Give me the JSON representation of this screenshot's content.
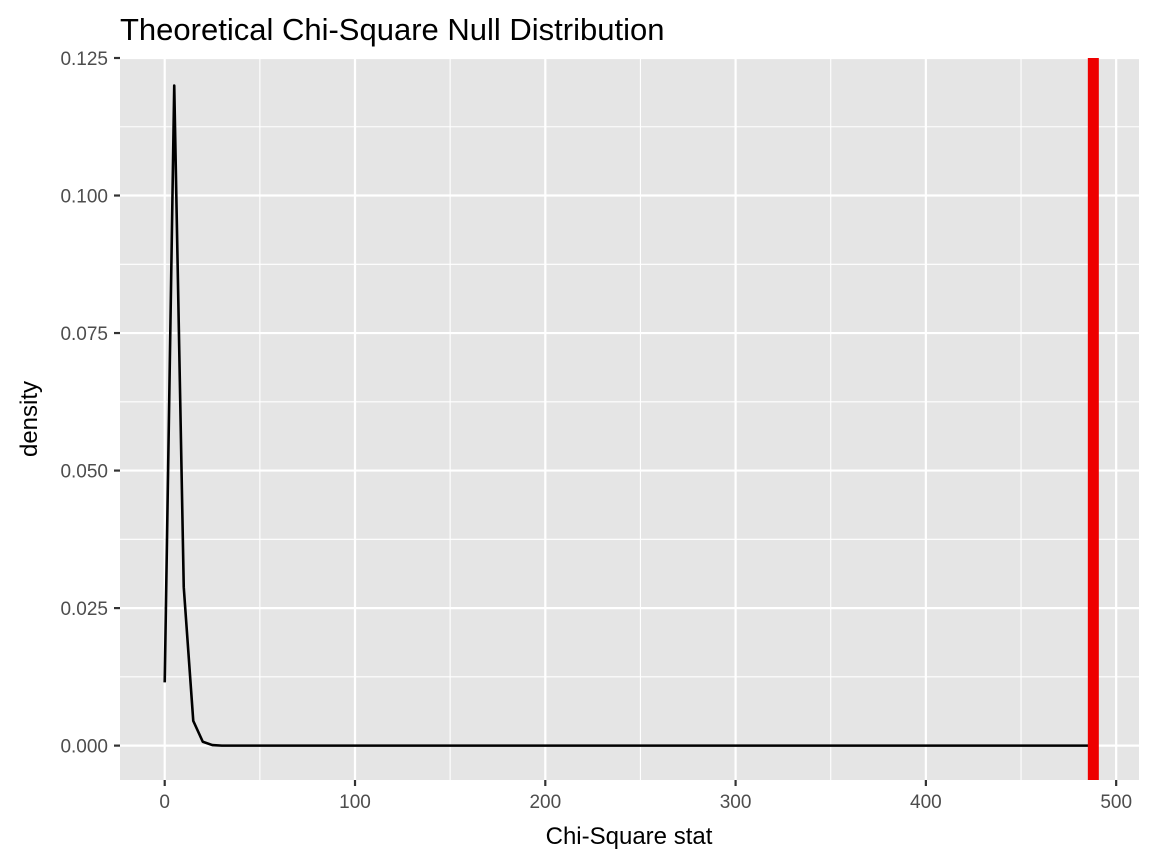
{
  "chart_data": {
    "type": "line",
    "title": "Theoretical Chi-Square Null Distribution",
    "xlabel": "Chi-Square stat",
    "ylabel": "density",
    "xlim": [
      -23.5,
      512
    ],
    "ylim": [
      -0.00625,
      0.125
    ],
    "x_ticks": [
      0,
      100,
      200,
      300,
      400,
      500
    ],
    "x_tick_labels": [
      "0",
      "100",
      "200",
      "300",
      "400",
      "500"
    ],
    "y_ticks": [
      0,
      0.025,
      0.05,
      0.075,
      0.1,
      0.125
    ],
    "y_tick_labels": [
      "0.000",
      "0.025",
      "0.050",
      "0.075",
      "0.100",
      "0.125"
    ],
    "grid": true,
    "background_color": "#e5e5e5",
    "grid_color": "#ffffff",
    "series": [
      {
        "color": "#000000",
        "x": [
          0,
          5,
          10,
          15,
          20,
          25,
          30,
          40,
          60,
          100,
          200,
          300,
          400,
          488
        ],
        "y": [
          0.0115,
          0.12,
          0.0288,
          0.0045,
          0.0007,
          0.0001,
          0.0,
          0.0,
          0.0,
          0.0,
          0.0,
          0.0,
          0.0,
          0.0
        ]
      }
    ],
    "vline": {
      "x": 488,
      "color": "#ee0000"
    }
  }
}
